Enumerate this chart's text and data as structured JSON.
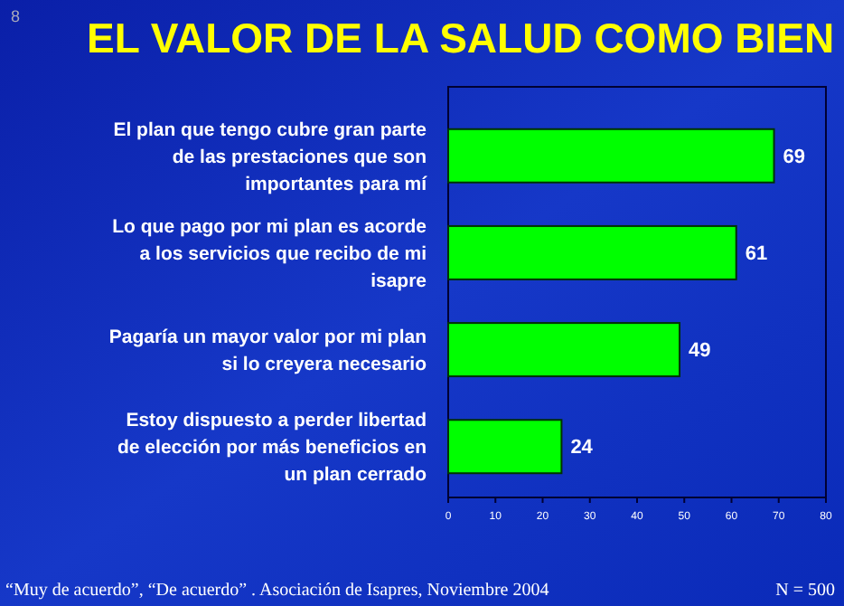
{
  "chart_data": {
    "type": "bar",
    "orientation": "horizontal",
    "title": "EL VALOR DE LA SALUD COMO BIEN",
    "categories": [
      "El plan que tengo cubre gran parte de las prestaciones que son importantes para mí",
      "Lo que pago por mi plan es acorde a los servicios que recibo de mi isapre",
      "Pagaría un mayor valor por mi plan si lo creyera necesario",
      "Estoy dispuesto a perder libertad de elección por más beneficios en un plan cerrado"
    ],
    "values": [
      69,
      61,
      49,
      24
    ],
    "color": "#00ff00",
    "data_labels": true,
    "xlim": [
      0,
      80
    ],
    "xticks": [
      0,
      10,
      20,
      30,
      40,
      50,
      60,
      70,
      80
    ],
    "grid": false,
    "annotations": [
      "8",
      "“Muy de acuerdo”, “De acuerdo” . Asociación de Isapres, Noviembre 2004",
      "N = 500"
    ]
  }
}
